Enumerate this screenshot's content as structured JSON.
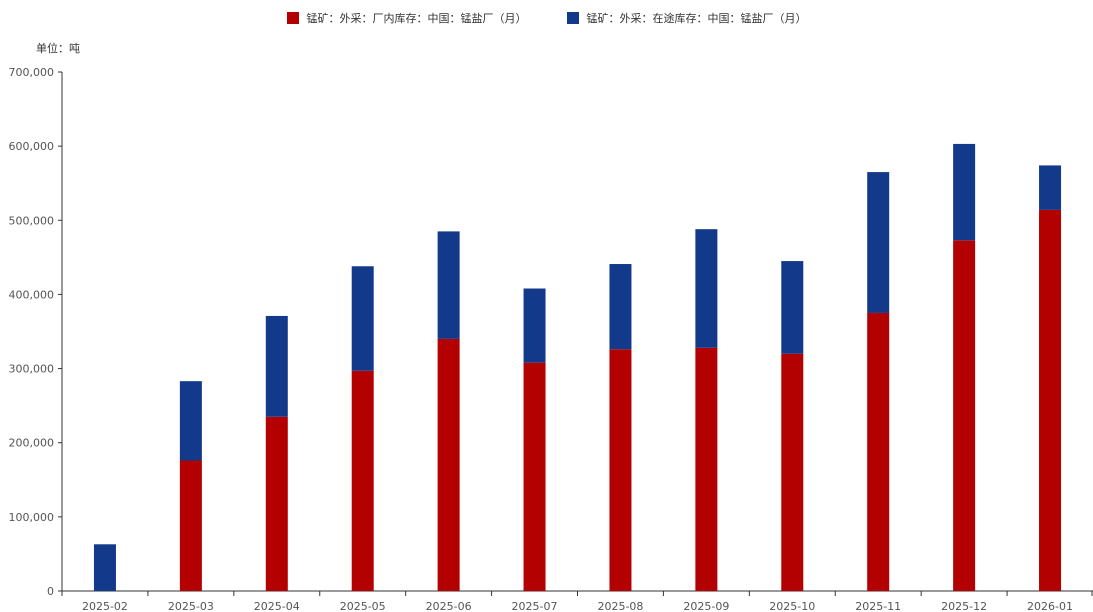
{
  "chart_data": {
    "type": "bar",
    "stacked": true,
    "unit_label": "单位：吨",
    "categories": [
      "2025-02",
      "2025-03",
      "2025-04",
      "2025-05",
      "2025-06",
      "2025-07",
      "2025-08",
      "2025-09",
      "2025-10",
      "2025-11",
      "2025-12",
      "2026-01"
    ],
    "series": [
      {
        "name": "锰矿：外采：厂内库存：中国：锰盐厂（月）",
        "color": "#b30000",
        "values": [
          0,
          176000,
          235000,
          297000,
          340000,
          308000,
          326000,
          328000,
          320000,
          375000,
          473000,
          514000
        ]
      },
      {
        "name": "锰矿：外采：在途库存：中国：锰盐厂（月）",
        "color": "#133a8a",
        "values": [
          63000,
          107000,
          136000,
          141000,
          145000,
          100000,
          115000,
          160000,
          125000,
          190000,
          130000,
          60000
        ]
      }
    ],
    "ylim": [
      0,
      700000
    ],
    "yticks": [
      "0",
      "100,000",
      "200,000",
      "300,000",
      "400,000",
      "500,000",
      "600,000",
      "700,000"
    ],
    "legend_position": "top-center",
    "grid": false
  }
}
